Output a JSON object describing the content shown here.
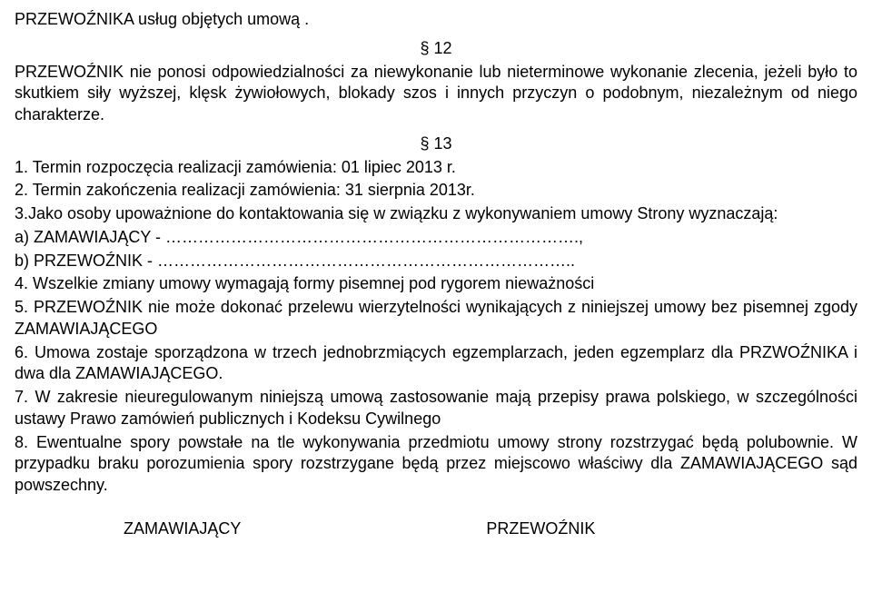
{
  "top_line": "PRZEWOŹNIKA usług objętych umową .",
  "s12": {
    "num": "§  12",
    "p1": "PRZEWOŹNIK nie ponosi odpowiedzialności za niewykonanie lub nieterminowe wykonanie zlecenia, jeżeli było to skutkiem siły wyższej, klęsk żywiołowych, blokady szos i innych przyczyn o podobnym, niezależnym od niego charakterze."
  },
  "s13": {
    "num": "§  13",
    "p1": "1. Termin rozpoczęcia realizacji zamówienia:   01 lipiec 2013 r.",
    "p2": "2. Termin zakończenia realizacji zamówienia:  31 sierpnia 2013r.",
    "p3": "3.Jako osoby upoważnione do kontaktowania się w związku z wykonywaniem umowy Strony wyznaczają:",
    "p3a": "a) ZAMAWIAJĄCY - ………………………………………………………………….,",
    "p3b": "b) PRZEWOŹNIK - …………………………………………………………………..",
    "p4": "4. Wszelkie zmiany umowy wymagają formy pisemnej pod rygorem nieważności",
    "p5": "5. PRZEWOŹNIK nie może dokonać przelewu wierzytelności wynikających z niniejszej umowy bez pisemnej zgody ZAMAWIAJĄCEGO",
    "p6": "6. Umowa zostaje sporządzona w trzech jednobrzmiących egzemplarzach, jeden egzemplarz dla PRZWOŹNIKA i dwa dla ZAMAWIAJĄCEGO.",
    "p7": "7. W zakresie nieuregulowanym niniejszą umową zastosowanie mają przepisy prawa polskiego, w szczególności ustawy Prawo zamówień publicznych i Kodeksu Cywilnego",
    "p8": "8. Ewentualne spory powstałe na tle wykonywania przedmiotu umowy strony rozstrzygać będą polubownie. W przypadku braku porozumienia spory rozstrzygane będą przez miejscowo właściwy dla ZAMAWIAJĄCEGO  sąd powszechny."
  },
  "footer": {
    "left": "ZAMAWIAJĄCY",
    "right": "PRZEWOŹNIK"
  }
}
